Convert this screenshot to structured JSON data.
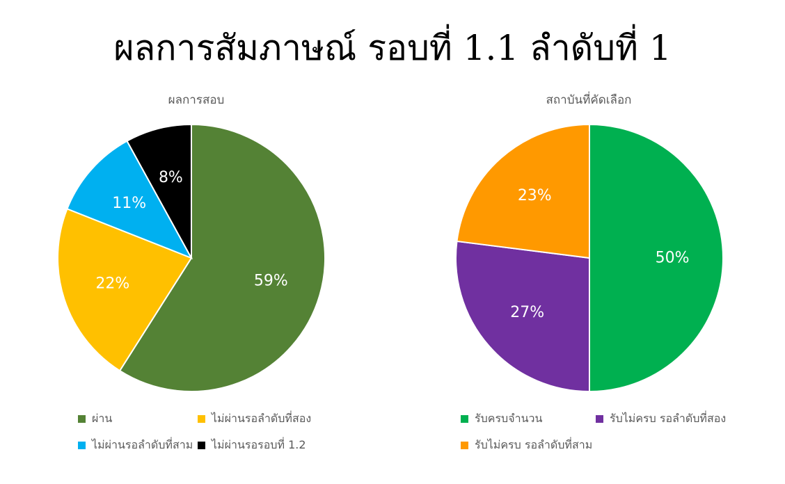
{
  "page": {
    "title": "ผลการสัมภาษณ์ รอบที่ 1.1 ลำดับที่ 1"
  },
  "chart_data": [
    {
      "type": "pie",
      "title": "ผลการสอบ",
      "slices": [
        {
          "label": "ผ่าน",
          "value": 59,
          "display": "59%",
          "color": "#548235",
          "label_color": "#ffffff"
        },
        {
          "label": "ไม่ผ่านรอลำดับที่สอง",
          "value": 22,
          "display": "22%",
          "color": "#FFC000",
          "label_color": "#ffffff"
        },
        {
          "label": "ไม่ผ่านรอลำดับที่สาม",
          "value": 11,
          "display": "11%",
          "color": "#00B0F0",
          "label_color": "#ffffff"
        },
        {
          "label": "ไม่ผ่านรอรอบที่ 1.2",
          "value": 8,
          "display": "8%",
          "color": "#000000",
          "label_color": "#ffffff"
        }
      ],
      "legend_position": "bottom"
    },
    {
      "type": "pie",
      "title": "สถาบันที่คัดเลือก",
      "slices": [
        {
          "label": "รับครบจำนวน",
          "value": 50,
          "display": "50%",
          "color": "#00B050",
          "label_color": "#ffffff"
        },
        {
          "label": "รับไม่ครบ รอลำดับที่สอง",
          "value": 27,
          "display": "27%",
          "color": "#7030A0",
          "label_color": "#ffffff"
        },
        {
          "label": "รับไม่ครบ รอลำดับที่สาม",
          "value": 23,
          "display": "23%",
          "color": "#FF9900",
          "label_color": "#ffffff"
        }
      ],
      "legend_position": "bottom"
    }
  ]
}
